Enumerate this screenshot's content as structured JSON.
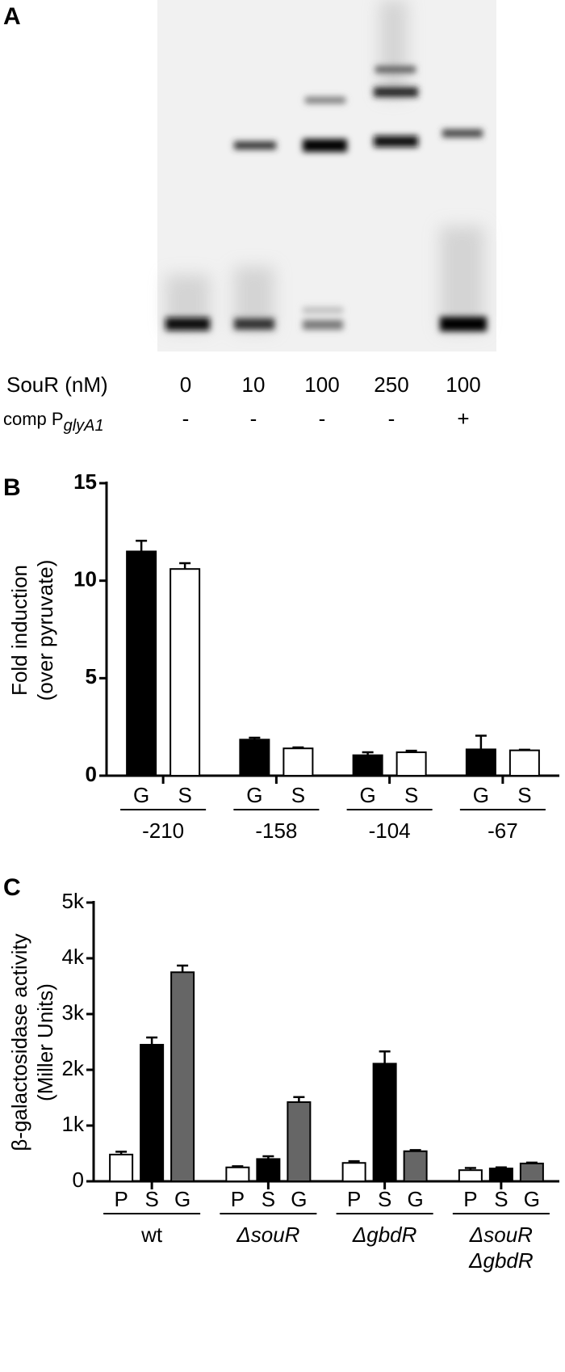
{
  "panel_a": {
    "label": "A",
    "conc_label": "SouR (nM)",
    "comp_label": "comp P",
    "comp_subscript": "glyA1",
    "concentrations": [
      0,
      10,
      100,
      250,
      100
    ],
    "comp": [
      "-",
      "-",
      "-",
      "-",
      "+"
    ]
  },
  "chart_data": [
    {
      "type": "bar",
      "panel_label": "B",
      "ylabel": [
        "Fold induction",
        "(over pyruvate)"
      ],
      "categories": [
        "-210",
        "-158",
        "-104",
        "-67"
      ],
      "series": [
        {
          "name": "G",
          "color": "#000000",
          "values": [
            11.5,
            1.85,
            1.05,
            1.35
          ],
          "errors": [
            0.55,
            0.1,
            0.15,
            0.7
          ]
        },
        {
          "name": "S",
          "color": "#ffffff",
          "values": [
            10.6,
            1.4,
            1.2,
            1.3
          ],
          "errors": [
            0.3,
            0.05,
            0.08,
            0.03
          ]
        }
      ],
      "ylim": [
        0,
        15
      ],
      "yticks": [
        0,
        5,
        10,
        15
      ],
      "bold_ticks": true
    },
    {
      "type": "bar",
      "panel_label": "C",
      "ylabel": [
        "β-galactosidase activity",
        "(Miller Units)"
      ],
      "categories": [
        [
          "wt"
        ],
        [
          "ΔsouR"
        ],
        [
          "ΔgbdR"
        ],
        [
          "ΔsouR",
          "ΔgbdR"
        ]
      ],
      "italic_labels": [
        false,
        true,
        true,
        true
      ],
      "series": [
        {
          "name": "P",
          "color": "#ffffff",
          "values": [
            480,
            250,
            330,
            200
          ],
          "errors": [
            50,
            20,
            30,
            40
          ]
        },
        {
          "name": "S",
          "color": "#000000",
          "values": [
            2450,
            400,
            2110,
            230
          ],
          "errors": [
            130,
            50,
            220,
            20
          ]
        },
        {
          "name": "G",
          "color": "#666666",
          "values": [
            3750,
            1420,
            540,
            320
          ],
          "errors": [
            120,
            90,
            20,
            15
          ]
        }
      ],
      "ylim": [
        0,
        5000
      ],
      "yticks": [
        0,
        {
          "value": 1000,
          "label": "1k"
        },
        {
          "value": 2000,
          "label": "2k"
        },
        {
          "value": 3000,
          "label": "3k"
        },
        {
          "value": 4000,
          "label": "4k"
        },
        {
          "value": 5000,
          "label": "5k"
        }
      ],
      "bold_ticks": false
    }
  ]
}
